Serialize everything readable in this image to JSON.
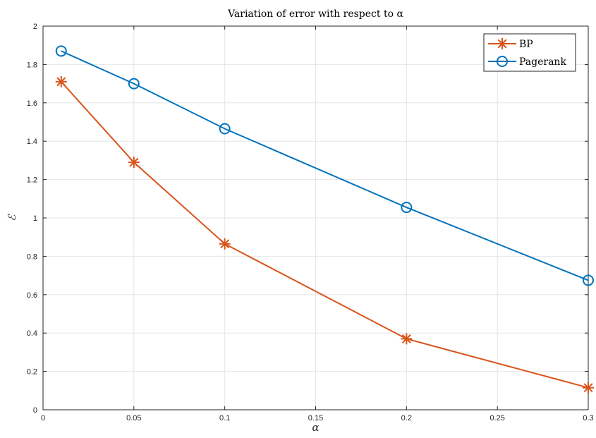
{
  "chart_data": {
    "type": "line",
    "title": "Variation of error with respect to α",
    "xlabel": "α",
    "ylabel": "ℰ",
    "xlim": [
      0,
      0.3
    ],
    "ylim": [
      0,
      2
    ],
    "xticks": [
      0,
      0.05,
      0.1,
      0.15,
      0.2,
      0.25,
      0.3
    ],
    "xtick_labels": [
      "0",
      "0.05",
      "0.1",
      "0.15",
      "0.2",
      "0.25",
      "0.3"
    ],
    "yticks": [
      0,
      0.2,
      0.4,
      0.6,
      0.8,
      1,
      1.2,
      1.4,
      1.6,
      1.8,
      2
    ],
    "ytick_labels": [
      "0",
      "0.2",
      "0.4",
      "0.6",
      "0.8",
      "1",
      "1.2",
      "1.4",
      "1.6",
      "1.8",
      "2"
    ],
    "grid": true,
    "legend_position": "top-right",
    "series": [
      {
        "name": "BP",
        "color": "#D95319",
        "marker": "asterisk",
        "x": [
          0.01,
          0.05,
          0.1,
          0.2,
          0.3
        ],
        "y": [
          1.71,
          1.29,
          0.865,
          0.37,
          0.115
        ]
      },
      {
        "name": "Pagerank",
        "color": "#0072BD",
        "marker": "circle",
        "x": [
          0.01,
          0.05,
          0.1,
          0.2,
          0.3
        ],
        "y": [
          1.87,
          1.7,
          1.465,
          1.055,
          0.675
        ]
      }
    ]
  }
}
